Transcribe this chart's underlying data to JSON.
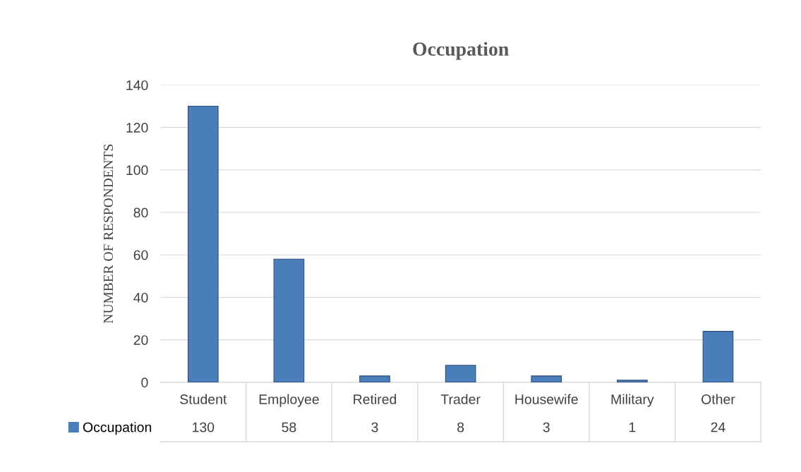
{
  "chart_data": {
    "type": "bar",
    "title": "Occupation",
    "ylabel": "NUMBER OF RESPONDENTS",
    "categories": [
      "Student",
      "Employee",
      "Retired",
      "Trader",
      "Housewife",
      "Military",
      "Other"
    ],
    "series": [
      {
        "name": "Occupation",
        "color": "#4a7ebb",
        "values": [
          130,
          58,
          3,
          8,
          3,
          1,
          24
        ]
      }
    ],
    "ylim": [
      0,
      140
    ],
    "yticks": [
      0,
      20,
      40,
      60,
      80,
      100,
      120,
      140
    ],
    "grid": "y",
    "data_labels": true,
    "legend": "bottom left"
  }
}
